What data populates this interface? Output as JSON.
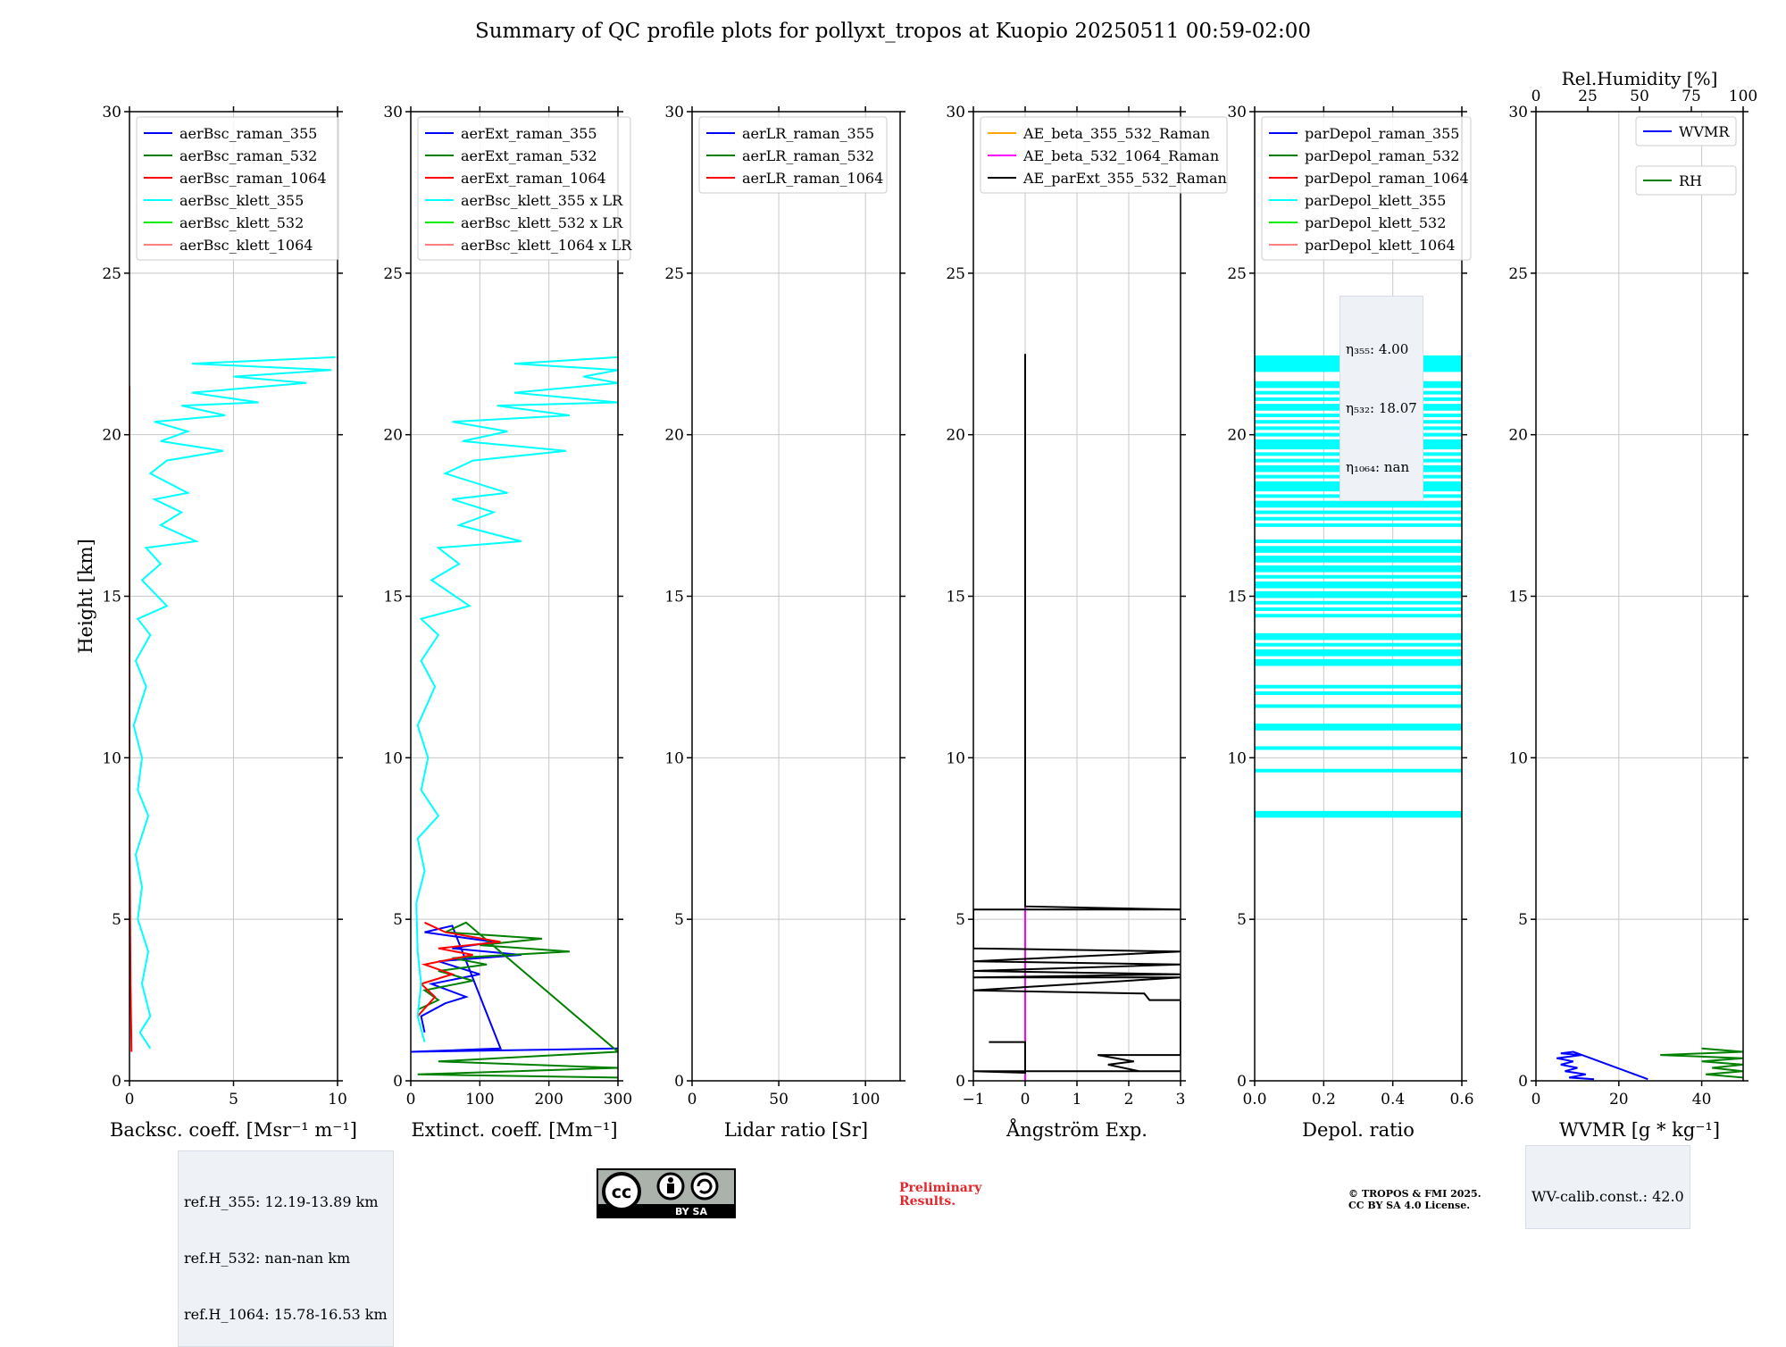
{
  "title": "Summary of QC profile plots for pollyxt_tropos at Kuopio 20250511 00:59-02:00",
  "colors": {
    "raman_355": "#0000ff",
    "raman_532": "#008000",
    "raman_1064": "#ff0000",
    "klett_355": "#00ffff",
    "klett_532": "#00ee00",
    "klett_1064": "#ff8080",
    "ae_355_532": "#ffa500",
    "ae_532_1064": "#ff00ff",
    "ae_parext": "#000000"
  },
  "chart_data": [
    {
      "type": "line",
      "id": "bsc",
      "ylabel": "Height [km]",
      "xlabel": "Backsc. coeff. [Msr⁻¹ m⁻¹]",
      "xlim": [
        0,
        10
      ],
      "xticks": [
        0,
        5,
        10
      ],
      "ylim": [
        0,
        30
      ],
      "yticks": [
        0,
        5,
        10,
        15,
        20,
        25,
        30
      ],
      "grid": true,
      "legend_loc": "upper-left",
      "series": [
        {
          "name": "aerBsc_raman_355",
          "color": "#0000ff",
          "points": []
        },
        {
          "name": "aerBsc_raman_532",
          "color": "#008000",
          "points": []
        },
        {
          "name": "aerBsc_raman_1064",
          "color": "#ff0000",
          "points": [
            [
              0.1,
              0.9
            ],
            [
              0.05,
              3
            ],
            [
              0.0,
              8
            ],
            [
              0.0,
              20
            ],
            [
              0.0,
              21.5
            ]
          ]
        },
        {
          "name": "aerBsc_klett_355",
          "color": "#00ffff",
          "points": [
            [
              1.0,
              1.0
            ],
            [
              0.5,
              1.5
            ],
            [
              1.0,
              2.0
            ],
            [
              0.6,
              3.0
            ],
            [
              0.9,
              4.0
            ],
            [
              0.4,
              5.0
            ],
            [
              0.6,
              6.0
            ],
            [
              0.3,
              7.0
            ],
            [
              0.9,
              8.2
            ],
            [
              0.4,
              9.0
            ],
            [
              0.6,
              10.0
            ],
            [
              0.2,
              11.0
            ],
            [
              0.8,
              12.2
            ],
            [
              0.3,
              13.0
            ],
            [
              1.0,
              13.8
            ],
            [
              0.4,
              14.3
            ],
            [
              1.8,
              14.7
            ],
            [
              0.6,
              15.5
            ],
            [
              1.5,
              16.0
            ],
            [
              0.8,
              16.5
            ],
            [
              3.2,
              16.7
            ],
            [
              1.5,
              17.2
            ],
            [
              2.5,
              17.6
            ],
            [
              1.2,
              18.0
            ],
            [
              2.8,
              18.2
            ],
            [
              1.0,
              18.8
            ],
            [
              1.8,
              19.2
            ],
            [
              4.5,
              19.5
            ],
            [
              1.5,
              19.8
            ],
            [
              2.8,
              20.1
            ],
            [
              1.2,
              20.4
            ],
            [
              4.6,
              20.6
            ],
            [
              2.5,
              20.9
            ],
            [
              6.2,
              21.0
            ],
            [
              3.0,
              21.3
            ],
            [
              8.5,
              21.6
            ],
            [
              5.0,
              21.8
            ],
            [
              9.7,
              22.0
            ],
            [
              3.0,
              22.2
            ],
            [
              9.9,
              22.4
            ]
          ]
        },
        {
          "name": "aerBsc_klett_532",
          "color": "#00ee00",
          "points": []
        },
        {
          "name": "aerBsc_klett_1064",
          "color": "#ff8080",
          "points": []
        }
      ],
      "info": [
        "ref.H_355: 12.19-13.89 km",
        "ref.H_532: nan-nan km",
        "ref.H_1064: 15.78-16.53 km"
      ]
    },
    {
      "type": "line",
      "id": "ext",
      "xlabel": "Extinct. coeff. [Mm⁻¹]",
      "xlim": [
        0,
        300
      ],
      "xticks": [
        0,
        100,
        200,
        300
      ],
      "ylim": [
        0,
        30
      ],
      "yticks": [
        0,
        5,
        10,
        15,
        20,
        25,
        30
      ],
      "grid": true,
      "legend_loc": "upper-left",
      "series": [
        {
          "name": "aerExt_raman_355",
          "color": "#0000ff",
          "points": [
            [
              20,
              1.5
            ],
            [
              15,
              2.0
            ],
            [
              50,
              2.4
            ],
            [
              80,
              2.6
            ],
            [
              30,
              3.0
            ],
            [
              100,
              3.3
            ],
            [
              40,
              3.7
            ],
            [
              160,
              3.9
            ],
            [
              60,
              4.1
            ],
            [
              120,
              4.3
            ],
            [
              20,
              4.6
            ],
            [
              60,
              4.8
            ],
            [
              130,
              1.0
            ],
            [
              0,
              0.9
            ],
            [
              300,
              1.0
            ]
          ]
        },
        {
          "name": "aerExt_raman_532",
          "color": "#008000",
          "points": [
            [
              10,
              2.2
            ],
            [
              40,
              2.5
            ],
            [
              20,
              2.8
            ],
            [
              90,
              3.1
            ],
            [
              40,
              3.4
            ],
            [
              110,
              3.6
            ],
            [
              60,
              3.8
            ],
            [
              230,
              4.0
            ],
            [
              100,
              4.2
            ],
            [
              190,
              4.4
            ],
            [
              50,
              4.6
            ],
            [
              80,
              4.9
            ],
            [
              300,
              0.9
            ],
            [
              40,
              0.6
            ],
            [
              300,
              0.4
            ],
            [
              10,
              0.2
            ],
            [
              300,
              0.1
            ]
          ]
        },
        {
          "name": "aerExt_raman_1064",
          "color": "#ff0000",
          "points": [
            [
              10,
              2.0
            ],
            [
              35,
              2.6
            ],
            [
              15,
              3.0
            ],
            [
              60,
              3.3
            ],
            [
              20,
              3.6
            ],
            [
              90,
              3.9
            ],
            [
              40,
              4.1
            ],
            [
              130,
              4.3
            ],
            [
              50,
              4.6
            ],
            [
              20,
              4.9
            ]
          ]
        },
        {
          "name": "aerBsc_klett_355 x LR",
          "color": "#00ffff",
          "points": [
            [
              20,
              1.2
            ],
            [
              10,
              2.0
            ],
            [
              15,
              3.0
            ],
            [
              10,
              4.0
            ],
            [
              8,
              5.5
            ],
            [
              20,
              6.5
            ],
            [
              10,
              7.5
            ],
            [
              40,
              8.2
            ],
            [
              15,
              9.0
            ],
            [
              25,
              10.0
            ],
            [
              10,
              11.0
            ],
            [
              35,
              12.2
            ],
            [
              15,
              13.0
            ],
            [
              40,
              13.8
            ],
            [
              15,
              14.3
            ],
            [
              85,
              14.7
            ],
            [
              30,
              15.5
            ],
            [
              70,
              16.0
            ],
            [
              40,
              16.5
            ],
            [
              160,
              16.7
            ],
            [
              70,
              17.2
            ],
            [
              120,
              17.6
            ],
            [
              60,
              18.0
            ],
            [
              140,
              18.2
            ],
            [
              50,
              18.8
            ],
            [
              90,
              19.2
            ],
            [
              225,
              19.5
            ],
            [
              75,
              19.8
            ],
            [
              140,
              20.1
            ],
            [
              60,
              20.4
            ],
            [
              230,
              20.6
            ],
            [
              125,
              20.9
            ],
            [
              300,
              21.0
            ],
            [
              150,
              21.3
            ],
            [
              300,
              21.6
            ],
            [
              250,
              21.8
            ],
            [
              300,
              22.0
            ],
            [
              150,
              22.2
            ],
            [
              300,
              22.4
            ]
          ]
        },
        {
          "name": "aerBsc_klett_532 x LR",
          "color": "#00ee00",
          "points": []
        },
        {
          "name": "aerBsc_klett_1064 x LR",
          "color": "#ff8080",
          "points": []
        }
      ]
    },
    {
      "type": "line",
      "id": "lr",
      "xlabel": "Lidar ratio [Sr]",
      "xlim": [
        0,
        120
      ],
      "xticks": [
        0,
        50,
        100
      ],
      "ylim": [
        0,
        30
      ],
      "yticks": [
        0,
        5,
        10,
        15,
        20,
        25,
        30
      ],
      "grid": true,
      "legend_loc": "upper-left",
      "series": [
        {
          "name": "aerLR_raman_355",
          "color": "#0000ff",
          "points": []
        },
        {
          "name": "aerLR_raman_532",
          "color": "#008000",
          "points": []
        },
        {
          "name": "aerLR_raman_1064",
          "color": "#ff0000",
          "points": []
        }
      ]
    },
    {
      "type": "line",
      "id": "ae",
      "xlabel": "Ångström Exp.",
      "xlim": [
        -1,
        3
      ],
      "xticks": [
        -1,
        0,
        1,
        2,
        3
      ],
      "xtick_labels": [
        "−1",
        "0",
        "1",
        "2",
        "3"
      ],
      "ylim": [
        0,
        30
      ],
      "yticks": [
        0,
        5,
        10,
        15,
        20,
        25,
        30
      ],
      "grid": true,
      "legend_loc": "upper-left",
      "series": [
        {
          "name": "AE_beta_355_532_Raman",
          "color": "#ffa500",
          "points": []
        },
        {
          "name": "AE_beta_532_1064_Raman",
          "color": "#ff00ff",
          "points": [
            [
              0,
              0
            ],
            [
              0,
              5.5
            ]
          ]
        },
        {
          "name": "AE_parExt_355_532_Raman",
          "color": "#000000",
          "points": [
            [
              0,
              22.5
            ],
            [
              0,
              5.4
            ],
            [
              3,
              5.3
            ],
            [
              -1,
              5.3
            ],
            [
              -1,
              4.1
            ],
            [
              3,
              4.0
            ],
            [
              -1,
              3.7
            ],
            [
              3,
              3.6
            ],
            [
              -1,
              3.4
            ],
            [
              3,
              3.3
            ],
            [
              -1,
              3.2
            ],
            [
              3,
              3.2
            ],
            [
              -1,
              2.8
            ],
            [
              2.3,
              2.7
            ],
            [
              2.4,
              2.5
            ],
            [
              3,
              2.5
            ],
            [
              3,
              0.8
            ],
            [
              1.4,
              0.8
            ],
            [
              2.1,
              0.6
            ],
            [
              1.6,
              0.5
            ],
            [
              2.2,
              0.3
            ],
            [
              3,
              0.3
            ],
            [
              3,
              0.3
            ],
            [
              -1,
              0.3
            ],
            [
              0,
              0.25
            ],
            [
              0,
              1.2
            ],
            [
              -0.7,
              1.2
            ]
          ]
        }
      ]
    },
    {
      "type": "line",
      "id": "depol",
      "xlabel": "Depol. ratio",
      "xlim": [
        0,
        0.6
      ],
      "xticks": [
        0,
        0.2,
        0.4,
        0.6
      ],
      "xtick_labels": [
        "0.0",
        "0.2",
        "0.4",
        "0.6"
      ],
      "ylim": [
        0,
        30
      ],
      "yticks": [
        0,
        5,
        10,
        15,
        20,
        25,
        30
      ],
      "grid": true,
      "legend_loc": "upper-left",
      "series": [
        {
          "name": "parDepol_raman_355",
          "color": "#0000ff",
          "points": []
        },
        {
          "name": "parDepol_raman_532",
          "color": "#008000",
          "points": []
        },
        {
          "name": "parDepol_raman_1064",
          "color": "#ff0000",
          "points": []
        },
        {
          "name": "parDepol_klett_355",
          "color": "#00ffff",
          "points": [],
          "hlines_km": [
            8.2,
            8.3,
            9.6,
            10.3,
            10.9,
            11.0,
            11.6,
            12.0,
            12.2,
            12.9,
            13.0,
            13.2,
            13.3,
            13.5,
            13.7,
            13.8,
            14.4,
            14.6,
            14.8,
            15.0,
            15.1,
            15.3,
            15.4,
            15.6,
            15.8,
            15.9,
            16.1,
            16.2,
            16.4,
            16.5,
            16.7,
            17.2,
            17.4,
            17.6,
            17.8,
            17.9,
            18.1,
            18.3,
            18.4,
            18.5,
            18.7,
            18.9,
            19.0,
            19.2,
            19.4,
            19.6,
            19.7,
            19.8,
            20.0,
            20.2,
            20.4,
            20.6,
            20.8,
            20.9,
            21.1,
            21.3,
            21.5,
            21.6,
            22.0,
            22.1,
            22.2,
            22.3,
            22.4
          ]
        },
        {
          "name": "parDepol_klett_532",
          "color": "#00ee00",
          "points": []
        },
        {
          "name": "parDepol_klett_1064",
          "color": "#ff8080",
          "points": []
        }
      ],
      "info": [
        "η₃₅₅: 4.00",
        "η₅₃₂: 18.07",
        "η₁₀₆₄: nan"
      ]
    },
    {
      "type": "line",
      "id": "wv",
      "xlabel": "WVMR [g * kg⁻¹]",
      "xlim": [
        0,
        50
      ],
      "xticks": [
        0,
        20,
        40
      ],
      "top_xlabel": "Rel.Humidity [%]",
      "top_xlim": [
        0,
        100
      ],
      "top_xticks": [
        0,
        25,
        50,
        75,
        100
      ],
      "ylim": [
        0,
        30
      ],
      "yticks": [
        0,
        5,
        10,
        15,
        20,
        25,
        30
      ],
      "grid": true,
      "legend_loc": "upper-right",
      "series": [
        {
          "name": "WVMR",
          "color": "#0000ff",
          "points": [
            [
              14,
              0.05
            ],
            [
              8,
              0.1
            ],
            [
              12,
              0.2
            ],
            [
              7,
              0.3
            ],
            [
              10,
              0.4
            ],
            [
              6,
              0.5
            ],
            [
              9,
              0.6
            ],
            [
              5,
              0.7
            ],
            [
              11,
              0.8
            ],
            [
              6,
              0.85
            ],
            [
              9,
              0.9
            ],
            [
              27,
              0.05
            ]
          ]
        },
        {
          "name": "RH",
          "color": "#008000",
          "axis": "top",
          "points": [
            [
              100,
              0.1
            ],
            [
              82,
              0.2
            ],
            [
              100,
              0.3
            ],
            [
              85,
              0.4
            ],
            [
              100,
              0.5
            ],
            [
              80,
              0.6
            ],
            [
              100,
              0.7
            ],
            [
              60,
              0.8
            ],
            [
              100,
              0.9
            ],
            [
              80,
              1.0
            ]
          ]
        }
      ],
      "info": [
        "WV-calib.const.: 42.0"
      ]
    }
  ],
  "footer": {
    "preliminary": "Preliminary Results.",
    "copyright_line1": "© TROPOS & FMI 2025.",
    "copyright_line2": "CC BY SA 4.0 License.",
    "license_badge": "BY   SA"
  }
}
